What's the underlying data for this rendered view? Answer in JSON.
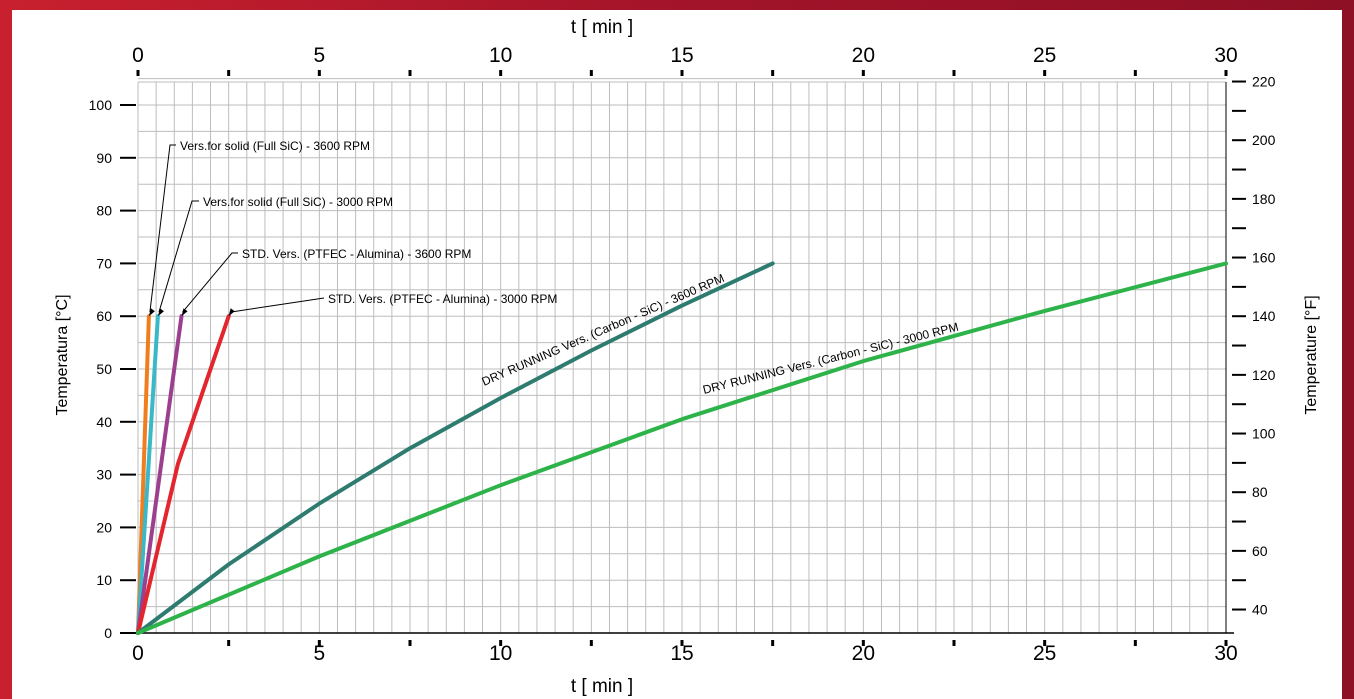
{
  "chart_data": {
    "type": "line",
    "top_axis_label": "t  [ min ]",
    "bottom_axis_label": "t  [ min ]",
    "left_axis_label": "Temperatura  [°C]",
    "right_axis_label": "Temperature  [°F]",
    "xlim": [
      0,
      30
    ],
    "ylim": [
      0,
      100
    ],
    "x_ticks": [
      0,
      5,
      10,
      15,
      20,
      25,
      30
    ],
    "y_ticks": [
      0,
      10,
      20,
      30,
      40,
      50,
      60,
      70,
      80,
      90,
      100
    ],
    "right_ticks": [
      40,
      60,
      80,
      100,
      120,
      140,
      160,
      180,
      200,
      220
    ],
    "grid": true,
    "series": [
      {
        "name": "Vers.for solid (Full SiC) - 3600 RPM",
        "color": "#f07d1e",
        "points": [
          [
            0,
            0
          ],
          [
            0.3,
            60
          ]
        ]
      },
      {
        "name": "Vers.for solid (Full SiC) - 3000 RPM",
        "color": "#3ab8c8",
        "points": [
          [
            0,
            0
          ],
          [
            0.55,
            60
          ]
        ]
      },
      {
        "name": "STD. Vers. (PTFEC - Alumina) - 3600 RPM",
        "color": "#9b3f8e",
        "points": [
          [
            0,
            0
          ],
          [
            1.2,
            60
          ]
        ]
      },
      {
        "name": "STD. Vers. (PTFEC - Alumina) - 3000 RPM",
        "color": "#e3262e",
        "points": [
          [
            0,
            0
          ],
          [
            1.1,
            32
          ],
          [
            2.5,
            60
          ]
        ]
      },
      {
        "name": "DRY RUNNING Vers. (Carbon - SiC) - 3600 RPM",
        "color": "#2e7b6f",
        "points": [
          [
            0,
            0
          ],
          [
            2.5,
            13
          ],
          [
            5,
            24.5
          ],
          [
            7.5,
            35
          ],
          [
            10,
            44.5
          ],
          [
            12.5,
            53.5
          ],
          [
            15,
            62
          ],
          [
            17.5,
            70
          ]
        ]
      },
      {
        "name": "DRY RUNNING Vers. (Carbon - SiC) - 3000 RPM",
        "color": "#2db34a",
        "points": [
          [
            0,
            0
          ],
          [
            5,
            14.5
          ],
          [
            10,
            28
          ],
          [
            15,
            40.5
          ],
          [
            20,
            51.5
          ],
          [
            25,
            61
          ],
          [
            30,
            70
          ]
        ]
      }
    ],
    "annotations": [
      {
        "text": "Vers.for solid (Full SiC) - 3600 RPM",
        "series": 0
      },
      {
        "text": "Vers.for solid (Full SiC) - 3000 RPM",
        "series": 1
      },
      {
        "text": "STD. Vers. (PTFEC - Alumina) - 3600 RPM",
        "series": 2
      },
      {
        "text": "STD. Vers. (PTFEC - Alumina) - 3000 RPM",
        "series": 3
      },
      {
        "text": "DRY RUNNING Vers. (Carbon - SiC) - 3600 RPM",
        "series": 4
      },
      {
        "text": "DRY RUNNING Vers. (Carbon - SiC) - 3000 RPM",
        "series": 5
      }
    ]
  }
}
